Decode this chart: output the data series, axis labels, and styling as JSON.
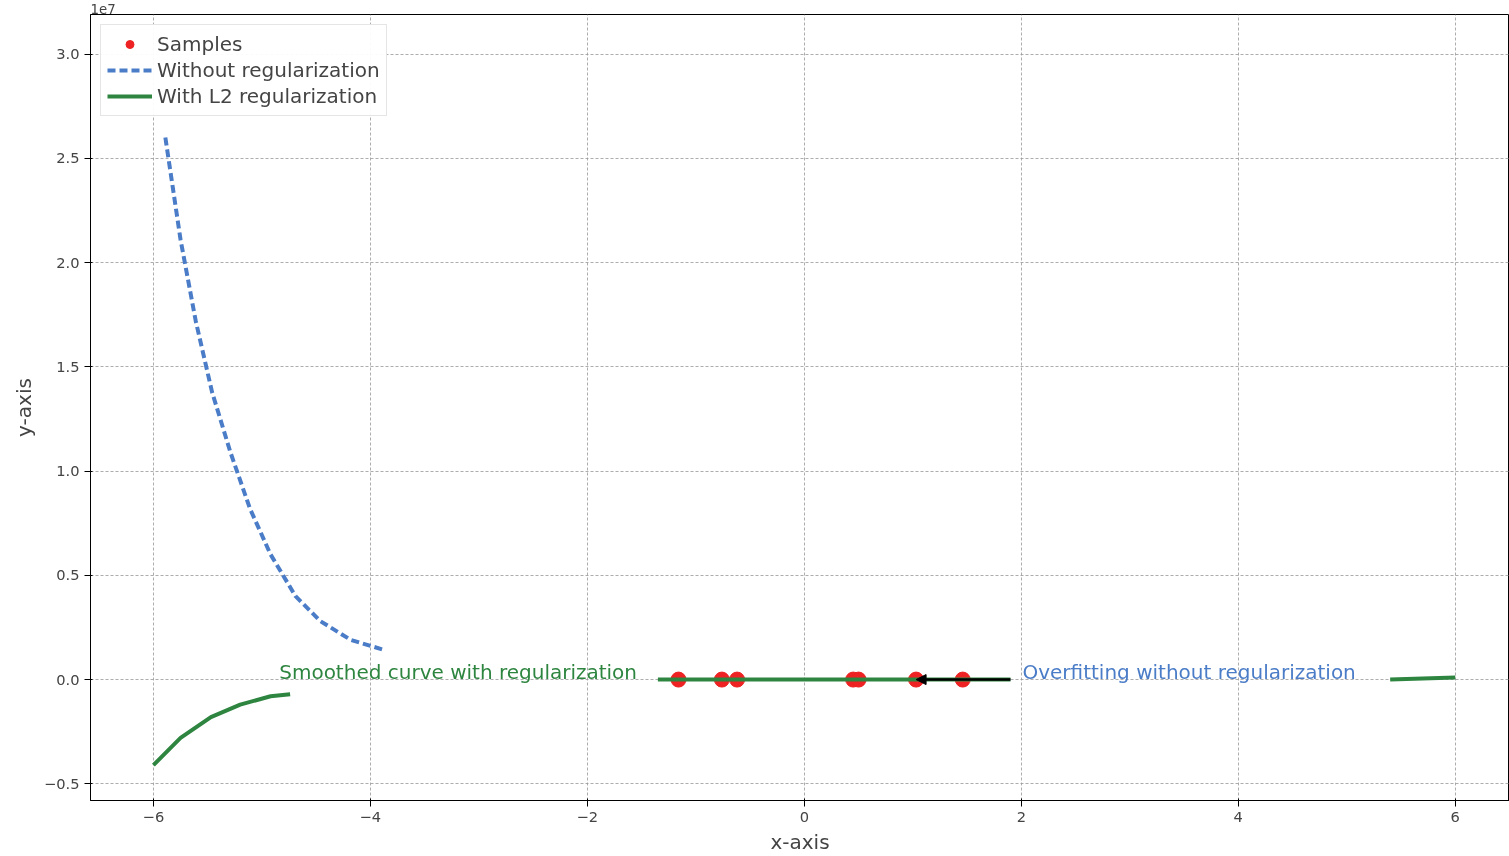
{
  "chart_data": {
    "type": "line",
    "xlabel": "x-axis",
    "ylabel": "y-axis",
    "xlim": [
      -6.58,
      6.5
    ],
    "ylim": [
      -0.58,
      3.19
    ],
    "xticks": [
      {
        "value": -6,
        "label": "−6"
      },
      {
        "value": -4,
        "label": "−4"
      },
      {
        "value": -2,
        "label": "−2"
      },
      0,
      2,
      4,
      6
    ],
    "yticks": [
      {
        "value": -0.5,
        "label": "−0.5"
      },
      {
        "value": 0,
        "label": "0.0"
      },
      {
        "value": 0.5,
        "label": "0.5"
      },
      {
        "value": 1,
        "label": "1.0"
      },
      {
        "value": 1.5,
        "label": "1.5"
      },
      {
        "value": 2,
        "label": "2.0"
      },
      {
        "value": 2.5,
        "label": "2.5"
      },
      {
        "value": 3,
        "label": "3.0"
      }
    ],
    "grid": true,
    "legend": "top left",
    "series": [
      {
        "name": "Samples",
        "type": "scatter",
        "marker": "circle",
        "color": "#ee2222",
        "x": [
          -1.16,
          -0.76,
          -0.62,
          0.45,
          0.5,
          1.03,
          1.46
        ],
        "values": [
          0,
          0,
          0,
          0,
          0,
          0,
          0
        ]
      },
      {
        "name": "Without regularization",
        "line_style": "dashed",
        "color": "#4a7cc7",
        "x": [
          -5.89,
          -5.75,
          -5.61,
          -5.46,
          -5.29,
          -5.11,
          -4.92,
          -4.69,
          -4.46,
          -4.18,
          -3.86
        ],
        "values": [
          2.6,
          2.11,
          1.72,
          1.38,
          1.09,
          0.82,
          0.6,
          0.4,
          0.28,
          0.19,
          0.14
        ]
      },
      {
        "name": "With L2 regularization",
        "line_style": "solid",
        "color": "#2e8540",
        "x": [
          -6,
          -5.75,
          -5.47,
          -5.2,
          -4.92,
          -4.74,
          -3.0,
          -1.35,
          -0.5,
          0.5,
          1.9,
          3.5,
          5.4,
          6
        ],
        "values": [
          -0.41,
          -0.28,
          -0.18,
          -0.12,
          -0.08,
          -0.07,
          null,
          0,
          0,
          0,
          0,
          null,
          0.0,
          0.01
        ]
      }
    ],
    "annotations": [
      "1e7",
      "Smoothed curve with regularization",
      {
        "text": "Overfitting without regularization",
        "x": 1.03,
        "y": 0
      }
    ]
  }
}
